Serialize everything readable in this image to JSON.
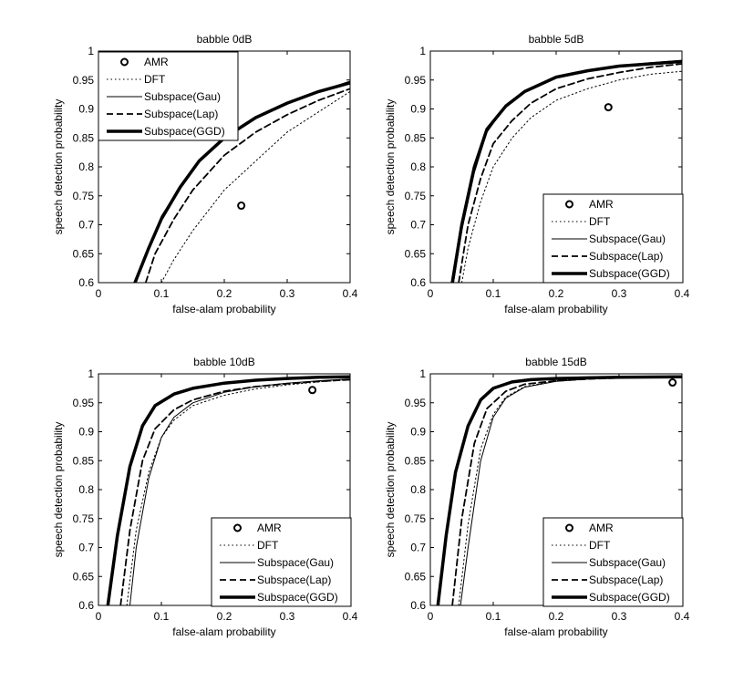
{
  "chart_data": [
    {
      "type": "line",
      "title": "babble 0dB",
      "xlabel": "false-alam probability",
      "ylabel": "speech detection probability",
      "xlim": [
        0,
        0.4
      ],
      "ylim": [
        0.6,
        1.0
      ],
      "xticks": [
        "0",
        "0.1",
        "0.2",
        "0.3",
        "0.4"
      ],
      "yticks": [
        "0.6",
        "0.65",
        "0.7",
        "0.75",
        "0.8",
        "0.85",
        "0.9",
        "0.95",
        "1"
      ],
      "legend_position": "top-left",
      "legend": [
        "AMR",
        "DFT",
        "Subspace(Gau)",
        "Subspace(Lap)",
        "Subspace(GGD)"
      ],
      "amr_point": {
        "x": 0.227,
        "y": 0.733
      },
      "series": [
        {
          "name": "DFT",
          "style": "dotted",
          "x": [
            0.1,
            0.12,
            0.15,
            0.2,
            0.25,
            0.3,
            0.35,
            0.4
          ],
          "y": [
            0.6,
            0.64,
            0.69,
            0.76,
            0.81,
            0.86,
            0.895,
            0.93
          ]
        },
        {
          "name": "Subspace(Gau)",
          "style": "thin",
          "x": [
            0.06,
            0.08,
            0.1,
            0.13,
            0.16,
            0.2,
            0.25,
            0.3,
            0.35,
            0.4
          ],
          "y": [
            0.6,
            0.66,
            0.715,
            0.765,
            0.81,
            0.85,
            0.885,
            0.91,
            0.93,
            0.948
          ]
        },
        {
          "name": "Subspace(Lap)",
          "style": "dashed",
          "x": [
            0.075,
            0.09,
            0.12,
            0.15,
            0.2,
            0.25,
            0.3,
            0.35,
            0.4
          ],
          "y": [
            0.6,
            0.65,
            0.71,
            0.76,
            0.82,
            0.86,
            0.89,
            0.915,
            0.935
          ]
        },
        {
          "name": "Subspace(GGD)",
          "style": "thick",
          "x": [
            0.058,
            0.08,
            0.1,
            0.13,
            0.16,
            0.2,
            0.25,
            0.3,
            0.35,
            0.4
          ],
          "y": [
            0.6,
            0.66,
            0.71,
            0.765,
            0.81,
            0.85,
            0.885,
            0.91,
            0.93,
            0.945
          ]
        }
      ]
    },
    {
      "type": "line",
      "title": "babble 5dB",
      "xlabel": "false-alam probability",
      "ylabel": "speech detection probability",
      "xlim": [
        0,
        0.4
      ],
      "ylim": [
        0.6,
        1.0
      ],
      "xticks": [
        "0",
        "0.1",
        "0.2",
        "0.3",
        "0.4"
      ],
      "yticks": [
        "0.6",
        "0.65",
        "0.7",
        "0.75",
        "0.8",
        "0.85",
        "0.9",
        "0.95",
        "1"
      ],
      "legend_position": "bottom-right",
      "legend": [
        "AMR",
        "DFT",
        "Subspace(Gau)",
        "Subspace(Lap)",
        "Subspace(GGD)"
      ],
      "amr_point": {
        "x": 0.283,
        "y": 0.903
      },
      "series": [
        {
          "name": "DFT",
          "style": "dotted",
          "x": [
            0.05,
            0.06,
            0.08,
            0.1,
            0.13,
            0.16,
            0.2,
            0.25,
            0.3,
            0.35,
            0.4
          ],
          "y": [
            0.6,
            0.66,
            0.74,
            0.8,
            0.85,
            0.885,
            0.915,
            0.935,
            0.95,
            0.96,
            0.965
          ]
        },
        {
          "name": "Subspace(Gau)",
          "style": "thin",
          "x": [
            0.037,
            0.05,
            0.07,
            0.09,
            0.12,
            0.15,
            0.2,
            0.25,
            0.3,
            0.35,
            0.4
          ],
          "y": [
            0.6,
            0.69,
            0.79,
            0.86,
            0.905,
            0.93,
            0.955,
            0.967,
            0.975,
            0.98,
            0.984
          ]
        },
        {
          "name": "Subspace(Lap)",
          "style": "dashed",
          "x": [
            0.045,
            0.06,
            0.08,
            0.1,
            0.13,
            0.16,
            0.2,
            0.25,
            0.3,
            0.35,
            0.4
          ],
          "y": [
            0.6,
            0.7,
            0.78,
            0.84,
            0.88,
            0.91,
            0.935,
            0.952,
            0.963,
            0.972,
            0.978
          ]
        },
        {
          "name": "Subspace(GGD)",
          "style": "thick",
          "x": [
            0.035,
            0.05,
            0.07,
            0.09,
            0.12,
            0.15,
            0.2,
            0.25,
            0.3,
            0.35,
            0.4
          ],
          "y": [
            0.6,
            0.7,
            0.8,
            0.865,
            0.905,
            0.93,
            0.955,
            0.966,
            0.974,
            0.978,
            0.982
          ]
        }
      ]
    },
    {
      "type": "line",
      "title": "babble 10dB",
      "xlabel": "false-alam probability",
      "ylabel": "speech detection probability",
      "xlim": [
        0,
        0.4
      ],
      "ylim": [
        0.6,
        1.0
      ],
      "xticks": [
        "0",
        "0.1",
        "0.2",
        "0.3",
        "0.4"
      ],
      "yticks": [
        "0.6",
        "0.65",
        "0.7",
        "0.75",
        "0.8",
        "0.85",
        "0.9",
        "0.95",
        "1"
      ],
      "legend_position": "bottom-right",
      "legend": [
        "AMR",
        "DFT",
        "Subspace(Gau)",
        "Subspace(Lap)",
        "Subspace(GGD)"
      ],
      "amr_point": {
        "x": 0.34,
        "y": 0.972
      },
      "series": [
        {
          "name": "DFT",
          "style": "dotted",
          "x": [
            0.045,
            0.06,
            0.08,
            0.1,
            0.12,
            0.15,
            0.2,
            0.25,
            0.3,
            0.35,
            0.4
          ],
          "y": [
            0.6,
            0.73,
            0.83,
            0.89,
            0.92,
            0.945,
            0.963,
            0.974,
            0.981,
            0.986,
            0.99
          ]
        },
        {
          "name": "Subspace(Gau)",
          "style": "thin",
          "x": [
            0.05,
            0.06,
            0.08,
            0.1,
            0.12,
            0.15,
            0.2,
            0.25,
            0.3,
            0.35,
            0.4
          ],
          "y": [
            0.6,
            0.7,
            0.82,
            0.89,
            0.925,
            0.95,
            0.968,
            0.978,
            0.984,
            0.988,
            0.991
          ]
        },
        {
          "name": "Subspace(Lap)",
          "style": "dashed",
          "x": [
            0.035,
            0.05,
            0.07,
            0.09,
            0.12,
            0.15,
            0.2,
            0.25,
            0.3,
            0.35,
            0.4
          ],
          "y": [
            0.6,
            0.73,
            0.85,
            0.905,
            0.938,
            0.955,
            0.97,
            0.978,
            0.983,
            0.987,
            0.99
          ]
        },
        {
          "name": "Subspace(GGD)",
          "style": "thick",
          "x": [
            0.015,
            0.03,
            0.05,
            0.07,
            0.09,
            0.12,
            0.15,
            0.2,
            0.25,
            0.3,
            0.35,
            0.4
          ],
          "y": [
            0.6,
            0.72,
            0.84,
            0.91,
            0.945,
            0.965,
            0.975,
            0.984,
            0.989,
            0.992,
            0.994,
            0.995
          ]
        }
      ]
    },
    {
      "type": "line",
      "title": "babble 15dB",
      "xlabel": "false-alam probability",
      "ylabel": "speech detection probability",
      "xlim": [
        0,
        0.4
      ],
      "ylim": [
        0.6,
        1.0
      ],
      "xticks": [
        "0",
        "0.1",
        "0.2",
        "0.3",
        "0.4"
      ],
      "yticks": [
        "0.6",
        "0.65",
        "0.7",
        "0.75",
        "0.8",
        "0.85",
        "0.9",
        "0.95",
        "1"
      ],
      "legend_position": "bottom-right",
      "legend": [
        "AMR",
        "DFT",
        "Subspace(Gau)",
        "Subspace(Lap)",
        "Subspace(GGD)"
      ],
      "amr_point": {
        "x": 0.385,
        "y": 0.985
      },
      "series": [
        {
          "name": "DFT",
          "style": "dotted",
          "x": [
            0.045,
            0.06,
            0.08,
            0.1,
            0.12,
            0.15,
            0.2,
            0.25,
            0.3,
            0.35,
            0.4
          ],
          "y": [
            0.6,
            0.74,
            0.87,
            0.93,
            0.96,
            0.978,
            0.988,
            0.992,
            0.994,
            0.995,
            0.996
          ]
        },
        {
          "name": "Subspace(Gau)",
          "style": "thin",
          "x": [
            0.048,
            0.06,
            0.08,
            0.1,
            0.12,
            0.15,
            0.2,
            0.25,
            0.3,
            0.35,
            0.4
          ],
          "y": [
            0.6,
            0.7,
            0.85,
            0.925,
            0.958,
            0.977,
            0.987,
            0.991,
            0.993,
            0.995,
            0.996
          ]
        },
        {
          "name": "Subspace(Lap)",
          "style": "dashed",
          "x": [
            0.035,
            0.05,
            0.07,
            0.09,
            0.12,
            0.15,
            0.2,
            0.25,
            0.3,
            0.35,
            0.4
          ],
          "y": [
            0.6,
            0.75,
            0.88,
            0.94,
            0.97,
            0.982,
            0.988,
            0.991,
            0.993,
            0.995,
            0.996
          ]
        },
        {
          "name": "Subspace(GGD)",
          "style": "thick",
          "x": [
            0.012,
            0.025,
            0.04,
            0.06,
            0.08,
            0.1,
            0.13,
            0.16,
            0.2,
            0.25,
            0.3,
            0.4
          ],
          "y": [
            0.6,
            0.72,
            0.83,
            0.91,
            0.955,
            0.975,
            0.986,
            0.99,
            0.992,
            0.993,
            0.994,
            0.995
          ]
        }
      ]
    }
  ]
}
